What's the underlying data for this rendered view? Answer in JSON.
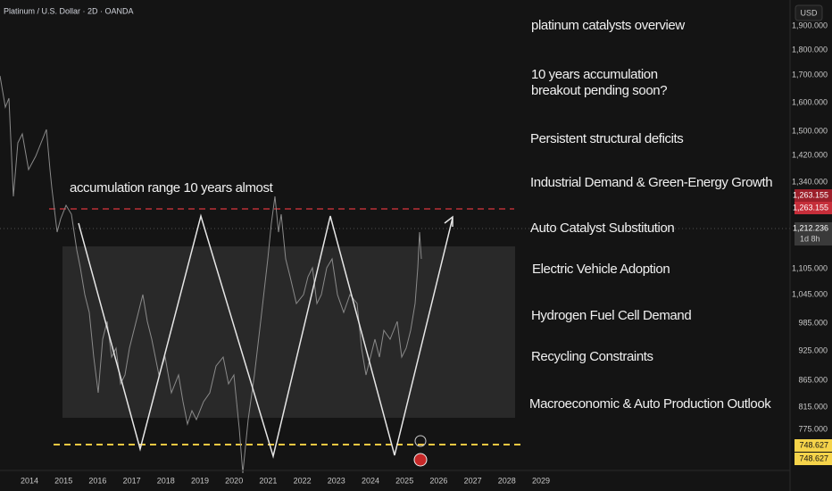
{
  "header": {
    "title": "Platinum / U.S. Dollar · 2D · OANDA",
    "currency": "USD"
  },
  "annotations": {
    "range_note": "accumulation range 10 years almost",
    "items": [
      "platinum catalysts overview",
      "10 years accumulation",
      "breakout pending soon?",
      "Persistent structural deficits",
      "Industrial Demand & Green-Energy Growth",
      "Auto Catalyst Substitution",
      "Electric Vehicle Adoption",
      "Hydrogen Fuel Cell Demand",
      "Recycling Constraints",
      "Macroeconomic & Auto Production Outlook"
    ]
  },
  "price_axis": {
    "labels": [
      "1,900.000",
      "1,800.000",
      "1,700.000",
      "1,600.000",
      "1,500.000",
      "1,420.000",
      "1,340.000",
      "1,105.000",
      "1,045.000",
      "985.000",
      "925.000",
      "865.000",
      "815.000",
      "775.000"
    ]
  },
  "price_tags": {
    "red": [
      "1,263.155",
      "1,263.155"
    ],
    "last": "1,212.236",
    "countdown": "1d 8h",
    "yellow": [
      "748.627",
      "748.627"
    ]
  },
  "time_axis": {
    "labels": [
      "2014",
      "2015",
      "2016",
      "2017",
      "2018",
      "2019",
      "2020",
      "2021",
      "2022",
      "2023",
      "2024",
      "2025",
      "2026",
      "2027",
      "2028",
      "2029"
    ]
  }
}
